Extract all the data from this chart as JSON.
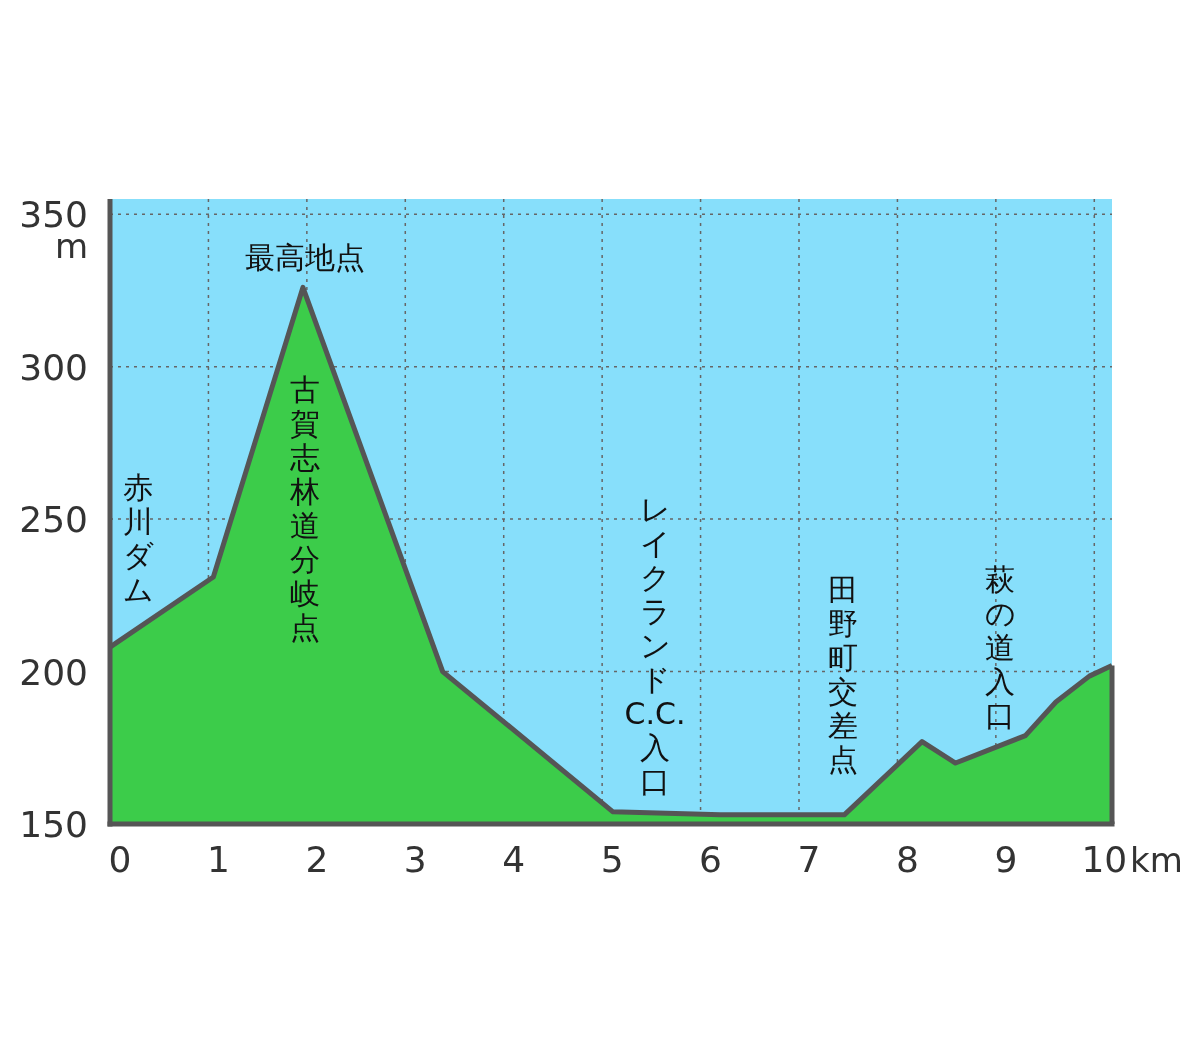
{
  "chart_data": {
    "type": "area",
    "xlabel": "km",
    "ylabel": "m",
    "x": [
      0,
      1.05,
      1.96,
      3.38,
      5.11,
      6.2,
      7.46,
      8.25,
      8.59,
      9.3,
      9.61,
      9.95,
      10.18
    ],
    "series": [
      {
        "color": "#3ccc4a",
        "values": [
          208,
          231,
          326,
          200,
          154,
          153,
          153,
          177,
          170,
          179,
          190,
          198.5,
          202
        ]
      }
    ],
    "xlim": [
      0,
      10.18
    ],
    "xticks": [
      0,
      1,
      2,
      3,
      4,
      5,
      6,
      7,
      8,
      9,
      10
    ],
    "ylim": [
      150,
      355
    ],
    "yticks": [
      150,
      200,
      250,
      300,
      350
    ],
    "grid": true,
    "annotations": [
      "最高地点",
      "赤川ダム",
      "古賀志林道分岐点",
      "レイクランドC.C.入口",
      "田野町交差点",
      "萩の道入口"
    ]
  }
}
